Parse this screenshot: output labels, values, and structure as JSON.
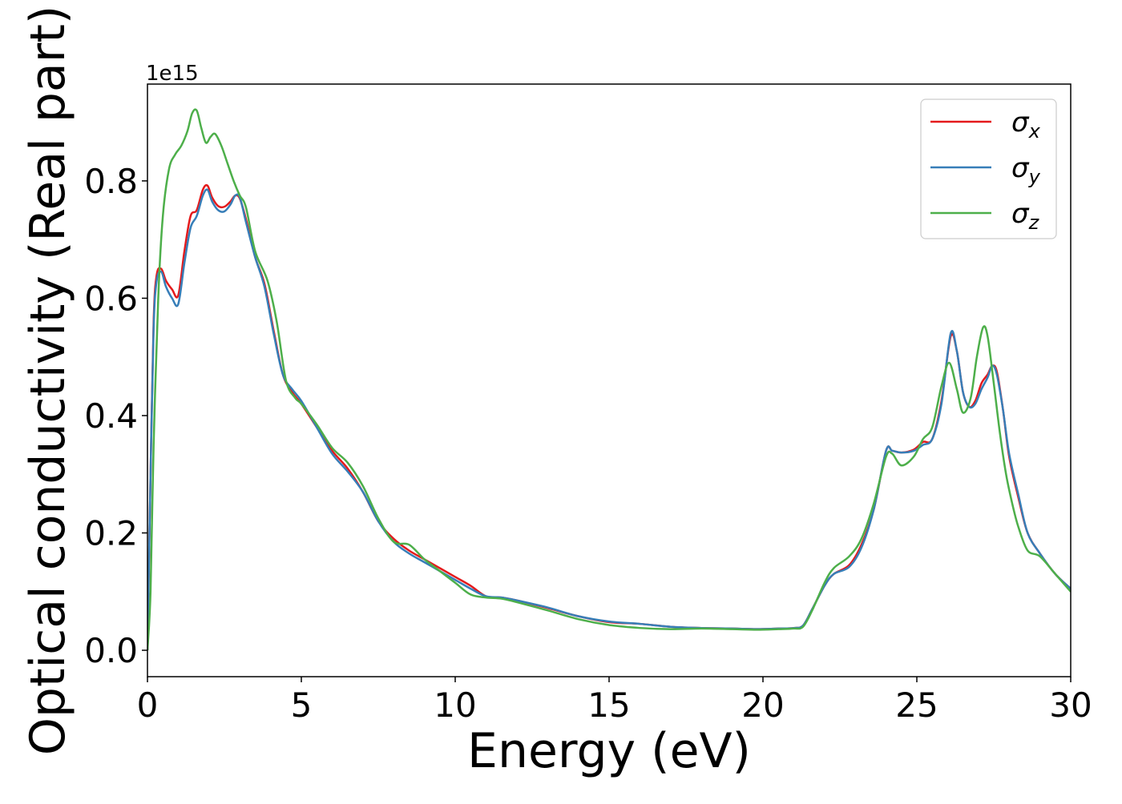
{
  "chart_data": {
    "type": "line",
    "title": "",
    "xlabel": "Energy (eV)",
    "ylabel": "Optical conductivity (Real part)",
    "xlim": [
      0,
      30
    ],
    "ylim": [
      -0.045,
      0.965
    ],
    "y_scale_label": "1e15",
    "x_ticks": [
      0,
      5,
      10,
      15,
      20,
      25,
      30
    ],
    "x_tick_labels": [
      "0",
      "5",
      "10",
      "15",
      "20",
      "25",
      "30"
    ],
    "y_ticks": [
      0.0,
      0.2,
      0.4,
      0.6,
      0.8
    ],
    "y_tick_labels": [
      "0.0",
      "0.2",
      "0.4",
      "0.6",
      "0.8"
    ],
    "grid": false,
    "legend_position": "top-right",
    "series": [
      {
        "name": "σx",
        "legend_base": "σ",
        "legend_sub": "x",
        "color": "#e41a1c",
        "x": [
          0,
          0.1,
          0.2,
          0.3,
          0.45,
          0.6,
          0.8,
          1.0,
          1.2,
          1.4,
          1.6,
          1.8,
          1.95,
          2.1,
          2.3,
          2.5,
          2.7,
          2.85,
          3.0,
          3.2,
          3.5,
          3.8,
          4.1,
          4.4,
          4.7,
          5.0,
          5.5,
          6.0,
          6.5,
          7.0,
          7.5,
          8.0,
          8.5,
          9.0,
          9.5,
          10.0,
          10.5,
          11.0,
          11.5,
          12.0,
          13.0,
          14.0,
          15.0,
          16.0,
          17.0,
          18.0,
          19.0,
          19.8,
          20.5,
          21.0,
          21.3,
          21.6,
          22.0,
          22.3,
          22.8,
          23.2,
          23.6,
          24.0,
          24.2,
          24.5,
          24.9,
          25.2,
          25.5,
          25.8,
          26.1,
          26.3,
          26.5,
          26.7,
          26.9,
          27.1,
          27.3,
          27.45,
          27.6,
          27.8,
          28.0,
          28.3,
          28.6,
          29.0,
          29.5,
          30.0
        ],
        "y": [
          0.0,
          0.3,
          0.56,
          0.64,
          0.65,
          0.63,
          0.615,
          0.605,
          0.68,
          0.74,
          0.75,
          0.785,
          0.792,
          0.772,
          0.757,
          0.756,
          0.765,
          0.775,
          0.77,
          0.735,
          0.67,
          0.625,
          0.545,
          0.47,
          0.44,
          0.42,
          0.38,
          0.34,
          0.31,
          0.27,
          0.22,
          0.19,
          0.17,
          0.155,
          0.14,
          0.125,
          0.11,
          0.092,
          0.09,
          0.085,
          0.072,
          0.058,
          0.048,
          0.045,
          0.04,
          0.038,
          0.037,
          0.036,
          0.037,
          0.038,
          0.042,
          0.07,
          0.11,
          0.13,
          0.145,
          0.18,
          0.24,
          0.34,
          0.34,
          0.337,
          0.342,
          0.355,
          0.36,
          0.425,
          0.535,
          0.51,
          0.44,
          0.415,
          0.425,
          0.455,
          0.47,
          0.485,
          0.475,
          0.41,
          0.33,
          0.26,
          0.2,
          0.165,
          0.13,
          0.105
        ]
      },
      {
        "name": "σy",
        "legend_base": "σ",
        "legend_sub": "y",
        "color": "#377eb8",
        "x": [
          0,
          0.1,
          0.2,
          0.3,
          0.45,
          0.6,
          0.8,
          1.0,
          1.2,
          1.4,
          1.6,
          1.8,
          1.95,
          2.1,
          2.3,
          2.5,
          2.7,
          2.85,
          3.0,
          3.2,
          3.5,
          3.8,
          4.1,
          4.4,
          4.7,
          5.0,
          5.5,
          6.0,
          6.5,
          7.0,
          7.5,
          8.0,
          8.5,
          9.0,
          9.5,
          10.0,
          10.5,
          11.0,
          11.5,
          12.0,
          13.0,
          14.0,
          15.0,
          16.0,
          17.0,
          18.0,
          19.0,
          19.8,
          20.5,
          21.0,
          21.3,
          21.6,
          22.0,
          22.3,
          22.8,
          23.2,
          23.6,
          24.0,
          24.2,
          24.5,
          24.9,
          25.2,
          25.5,
          25.8,
          26.1,
          26.3,
          26.5,
          26.7,
          26.9,
          27.1,
          27.3,
          27.45,
          27.6,
          27.8,
          28.0,
          28.3,
          28.6,
          29.0,
          29.5,
          30.0
        ],
        "y": [
          0.0,
          0.3,
          0.55,
          0.63,
          0.645,
          0.62,
          0.6,
          0.59,
          0.66,
          0.72,
          0.74,
          0.775,
          0.785,
          0.765,
          0.75,
          0.748,
          0.76,
          0.775,
          0.772,
          0.73,
          0.67,
          0.62,
          0.54,
          0.47,
          0.445,
          0.425,
          0.38,
          0.335,
          0.305,
          0.27,
          0.22,
          0.185,
          0.165,
          0.15,
          0.135,
          0.12,
          0.105,
          0.092,
          0.09,
          0.085,
          0.073,
          0.058,
          0.049,
          0.045,
          0.04,
          0.038,
          0.037,
          0.036,
          0.037,
          0.038,
          0.042,
          0.07,
          0.11,
          0.13,
          0.142,
          0.175,
          0.24,
          0.34,
          0.34,
          0.337,
          0.34,
          0.35,
          0.36,
          0.42,
          0.54,
          0.51,
          0.44,
          0.415,
          0.42,
          0.445,
          0.465,
          0.485,
          0.47,
          0.41,
          0.335,
          0.265,
          0.2,
          0.165,
          0.13,
          0.105
        ]
      },
      {
        "name": "σz",
        "legend_base": "σ",
        "legend_sub": "z",
        "color": "#4daf4a",
        "x": [
          0,
          0.1,
          0.2,
          0.35,
          0.5,
          0.7,
          0.9,
          1.1,
          1.3,
          1.45,
          1.6,
          1.75,
          1.9,
          2.05,
          2.2,
          2.4,
          2.6,
          2.8,
          3.0,
          3.2,
          3.5,
          3.9,
          4.2,
          4.5,
          4.8,
          5.0,
          5.5,
          6.0,
          6.5,
          7.0,
          7.5,
          8.0,
          8.5,
          9.0,
          9.5,
          10.0,
          10.5,
          11.0,
          11.5,
          12.0,
          13.0,
          14.0,
          15.0,
          16.0,
          17.0,
          18.0,
          19.0,
          19.8,
          20.5,
          21.0,
          21.3,
          21.6,
          22.0,
          22.3,
          22.8,
          23.2,
          23.6,
          24.0,
          24.2,
          24.5,
          24.9,
          25.2,
          25.5,
          25.8,
          26.05,
          26.3,
          26.5,
          26.75,
          26.95,
          27.15,
          27.3,
          27.5,
          27.7,
          27.9,
          28.1,
          28.3,
          28.6,
          29.0,
          29.5,
          30.0
        ],
        "y": [
          0.0,
          0.1,
          0.35,
          0.6,
          0.74,
          0.82,
          0.845,
          0.86,
          0.885,
          0.915,
          0.92,
          0.89,
          0.865,
          0.875,
          0.88,
          0.86,
          0.83,
          0.8,
          0.775,
          0.755,
          0.68,
          0.63,
          0.56,
          0.46,
          0.43,
          0.42,
          0.385,
          0.345,
          0.32,
          0.28,
          0.225,
          0.185,
          0.18,
          0.155,
          0.135,
          0.115,
          0.095,
          0.09,
          0.088,
          0.082,
          0.068,
          0.053,
          0.043,
          0.038,
          0.036,
          0.037,
          0.036,
          0.035,
          0.036,
          0.037,
          0.04,
          0.068,
          0.115,
          0.14,
          0.16,
          0.19,
          0.25,
          0.33,
          0.335,
          0.315,
          0.33,
          0.36,
          0.38,
          0.45,
          0.49,
          0.445,
          0.405,
          0.43,
          0.5,
          0.55,
          0.535,
          0.455,
          0.37,
          0.3,
          0.25,
          0.21,
          0.17,
          0.16,
          0.13,
          0.1
        ]
      }
    ]
  }
}
